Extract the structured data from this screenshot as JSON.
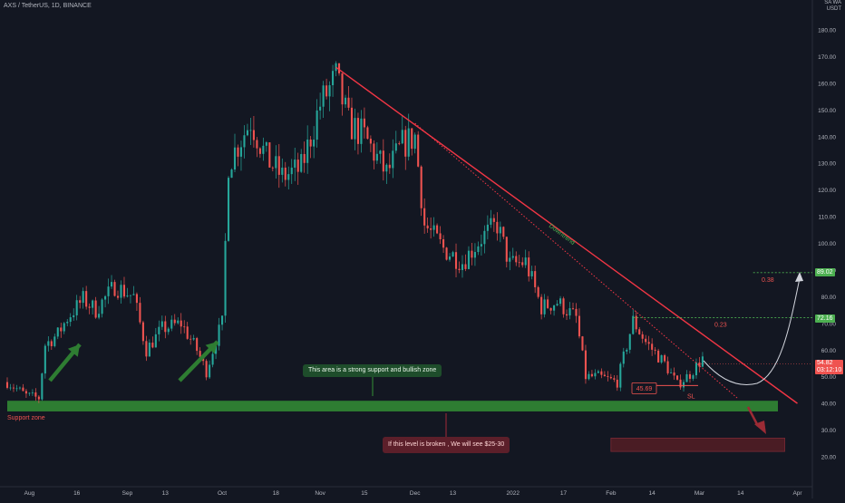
{
  "header": {
    "symbol": "AXS / TetherUS, 1D, BINANCE",
    "unit_top": "SA WA",
    "unit": "USDT"
  },
  "colors": {
    "background": "#131722",
    "up": "#26a69a",
    "down": "#ef5350",
    "grid": "#1e222d",
    "axis_text": "#b2b5be",
    "support": "#2e7d32",
    "red_zone": "#4a1c24",
    "trendline": "#f23645",
    "green_level": "#4caf50",
    "projection": "#d1d4dc"
  },
  "chart_data": {
    "type": "candlestick",
    "y_axis": {
      "scale": "linear",
      "range": [
        14,
        190
      ],
      "ticks": [
        20,
        30,
        40,
        50,
        60,
        70,
        80,
        90,
        100,
        110,
        120,
        130,
        140,
        150,
        160,
        170,
        180
      ],
      "tick_labels": [
        "20.00",
        "30.00",
        "40.00",
        "50.00",
        "60.00",
        "70.00",
        "80.00",
        "90.00",
        "100.00",
        "110.00",
        "120.00",
        "130.00",
        "140.00",
        "150.00",
        "160.00",
        "170.00",
        "180.00"
      ]
    },
    "x_axis": {
      "start": "2021-07-25",
      "end": "2022-04-02",
      "ticks": [
        {
          "date": "2021-08-01",
          "label": "Aug"
        },
        {
          "date": "2021-08-16",
          "label": "16"
        },
        {
          "date": "2021-09-01",
          "label": "Sep"
        },
        {
          "date": "2021-09-13",
          "label": "13"
        },
        {
          "date": "2021-10-01",
          "label": "Oct"
        },
        {
          "date": "2021-10-18",
          "label": "18"
        },
        {
          "date": "2021-11-01",
          "label": "Nov"
        },
        {
          "date": "2021-11-15",
          "label": "15"
        },
        {
          "date": "2021-12-01",
          "label": "Dec"
        },
        {
          "date": "2021-12-13",
          "label": "13"
        },
        {
          "date": "2022-01-01",
          "label": "2022"
        },
        {
          "date": "2022-01-17",
          "label": "17"
        },
        {
          "date": "2022-02-01",
          "label": "Feb"
        },
        {
          "date": "2022-02-14",
          "label": "14"
        },
        {
          "date": "2022-03-01",
          "label": "Mar"
        },
        {
          "date": "2022-03-14",
          "label": "14"
        },
        {
          "date": "2022-04-01",
          "label": "Apr"
        }
      ]
    },
    "grid": false,
    "price_path": [
      [
        "2021-07-25",
        48
      ],
      [
        "2021-07-31",
        43
      ],
      [
        "2021-08-04",
        42
      ],
      [
        "2021-08-06",
        62
      ],
      [
        "2021-08-10",
        66
      ],
      [
        "2021-08-13",
        72
      ],
      [
        "2021-08-18",
        79
      ],
      [
        "2021-08-22",
        75
      ],
      [
        "2021-08-28",
        84
      ],
      [
        "2021-09-03",
        80
      ],
      [
        "2021-09-07",
        60
      ],
      [
        "2021-09-12",
        68
      ],
      [
        "2021-09-18",
        70
      ],
      [
        "2021-09-23",
        60
      ],
      [
        "2021-09-26",
        52
      ],
      [
        "2021-09-29",
        64
      ],
      [
        "2021-10-01",
        70
      ],
      [
        "2021-10-03",
        130
      ],
      [
        "2021-10-06",
        137
      ],
      [
        "2021-10-10",
        146
      ],
      [
        "2021-10-15",
        132
      ],
      [
        "2021-10-20",
        125
      ],
      [
        "2021-10-26",
        128
      ],
      [
        "2021-11-01",
        152
      ],
      [
        "2021-11-06",
        162
      ],
      [
        "2021-11-10",
        145
      ],
      [
        "2021-11-15",
        140
      ],
      [
        "2021-11-22",
        126
      ],
      [
        "2021-11-27",
        137
      ],
      [
        "2021-12-01",
        140
      ],
      [
        "2021-12-04",
        107
      ],
      [
        "2021-12-10",
        98
      ],
      [
        "2021-12-16",
        93
      ],
      [
        "2021-12-22",
        102
      ],
      [
        "2021-12-27",
        107
      ],
      [
        "2021-12-31",
        92
      ],
      [
        "2022-01-05",
        93
      ],
      [
        "2022-01-10",
        76
      ],
      [
        "2022-01-15",
        78
      ],
      [
        "2022-01-21",
        72
      ],
      [
        "2022-01-24",
        50
      ],
      [
        "2022-01-28",
        50
      ],
      [
        "2022-02-03",
        48
      ],
      [
        "2022-02-08",
        71
      ],
      [
        "2022-02-12",
        63
      ],
      [
        "2022-02-18",
        55
      ],
      [
        "2022-02-22",
        47
      ],
      [
        "2022-02-26",
        51
      ],
      [
        "2022-03-02",
        57
      ]
    ],
    "trendline": {
      "start": [
        "2021-11-06",
        166
      ],
      "end": [
        "2022-04-01",
        40
      ]
    },
    "dotted_trendline": {
      "start": [
        "2021-12-01",
        145
      ],
      "end": [
        "2022-03-13",
        42
      ]
    },
    "levels": [
      {
        "price": 89.02,
        "label": "89.02",
        "fib": "0.38",
        "from": "2022-03-18"
      },
      {
        "price": 72.16,
        "label": "72.16",
        "fib": "0.23",
        "from": "2022-02-08"
      }
    ],
    "current_price": {
      "label": "54.82",
      "countdown": "03:12:10"
    },
    "support_zone": {
      "top": 41,
      "bottom": 37,
      "label": "Support zone"
    },
    "red_zone": {
      "top": 27,
      "bottom": 22,
      "from": "2022-02-01",
      "to": "2022-03-28"
    },
    "stop_loss": {
      "price": 45.69,
      "label": "45.69",
      "sl_label": "SL"
    },
    "annotations": {
      "trend_label": "Downtrend",
      "support_note": "This area is a strong support and bullish zone",
      "break_note": "If this level is broken , We will see $25-30"
    }
  }
}
